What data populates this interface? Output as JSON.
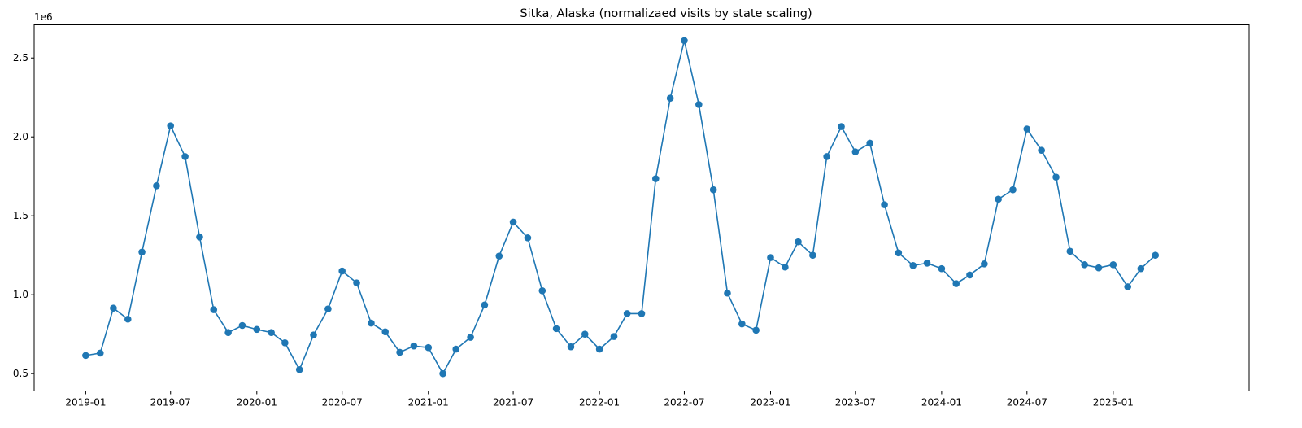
{
  "chart_data": {
    "type": "line",
    "title": "Sitka, Alaska (normalizaed visits by state scaling)",
    "xlabel": "",
    "ylabel": "",
    "y_offset_label": "1e6",
    "y_multiplier": 1000000,
    "ylim": [
      0.39,
      2.71
    ],
    "xlim": [
      "2018-09-13",
      "2025-10-18"
    ],
    "grid": false,
    "marker": "circle",
    "line_color": "#1f77b4",
    "y_ticks": [
      0.5,
      1.0,
      1.5,
      2.0,
      2.5
    ],
    "y_tick_labels": [
      "0.5",
      "1.0",
      "1.5",
      "2.0",
      "2.5"
    ],
    "x_ticks": [
      "2019-01-01",
      "2019-07-01",
      "2020-01-01",
      "2020-07-01",
      "2021-01-01",
      "2021-07-01",
      "2022-01-01",
      "2022-07-01",
      "2023-01-01",
      "2023-07-01",
      "2024-01-01",
      "2024-07-01",
      "2025-01-01"
    ],
    "x_tick_labels": [
      "2019-01",
      "2019-07",
      "2020-01",
      "2020-07",
      "2021-01",
      "2021-07",
      "2022-01",
      "2022-07",
      "2023-01",
      "2023-07",
      "2024-01",
      "2024-07",
      "2025-01"
    ],
    "series": [
      {
        "x": [
          "2019-01",
          "2019-02",
          "2019-03",
          "2019-04",
          "2019-05",
          "2019-06",
          "2019-07",
          "2019-08",
          "2019-09",
          "2019-10",
          "2019-11",
          "2019-12",
          "2020-01",
          "2020-02",
          "2020-03",
          "2020-04",
          "2020-05",
          "2020-06",
          "2020-07",
          "2020-08",
          "2020-09",
          "2020-10",
          "2020-11",
          "2020-12",
          "2021-01",
          "2021-02",
          "2021-03",
          "2021-04",
          "2021-05",
          "2021-06",
          "2021-07",
          "2021-08",
          "2021-09",
          "2021-10",
          "2021-11",
          "2021-12",
          "2022-01",
          "2022-02",
          "2022-03",
          "2022-04",
          "2022-05",
          "2022-06",
          "2022-07",
          "2022-08",
          "2022-09",
          "2022-10",
          "2022-11",
          "2022-12",
          "2023-01",
          "2023-02",
          "2023-03",
          "2023-04",
          "2023-05",
          "2023-06",
          "2023-07",
          "2023-08",
          "2023-09",
          "2023-10",
          "2023-11",
          "2023-12",
          "2024-01",
          "2024-02",
          "2024-03",
          "2024-04",
          "2024-05",
          "2024-06",
          "2024-07",
          "2024-08",
          "2024-09",
          "2024-10",
          "2024-11",
          "2024-12",
          "2025-01",
          "2025-02",
          "2025-03",
          "2025-04"
        ],
        "values": [
          0.615,
          0.63,
          0.915,
          0.845,
          1.27,
          1.69,
          2.07,
          1.875,
          1.365,
          0.905,
          0.76,
          0.805,
          0.78,
          0.76,
          0.695,
          0.525,
          0.745,
          0.91,
          1.15,
          1.075,
          0.82,
          0.765,
          0.635,
          0.675,
          0.665,
          0.5,
          0.655,
          0.73,
          0.935,
          1.245,
          1.46,
          1.36,
          1.025,
          0.785,
          0.67,
          0.75,
          0.655,
          0.735,
          0.88,
          0.88,
          1.735,
          2.245,
          2.61,
          2.205,
          1.665,
          1.01,
          0.815,
          0.775,
          1.235,
          1.175,
          1.335,
          1.25,
          1.875,
          2.065,
          1.905,
          1.96,
          1.57,
          1.265,
          1.185,
          1.2,
          1.165,
          1.07,
          1.125,
          1.195,
          1.605,
          1.665,
          2.05,
          1.915,
          1.745,
          1.275,
          1.19,
          1.17,
          1.19,
          1.05,
          1.165,
          1.25
        ]
      }
    ]
  }
}
